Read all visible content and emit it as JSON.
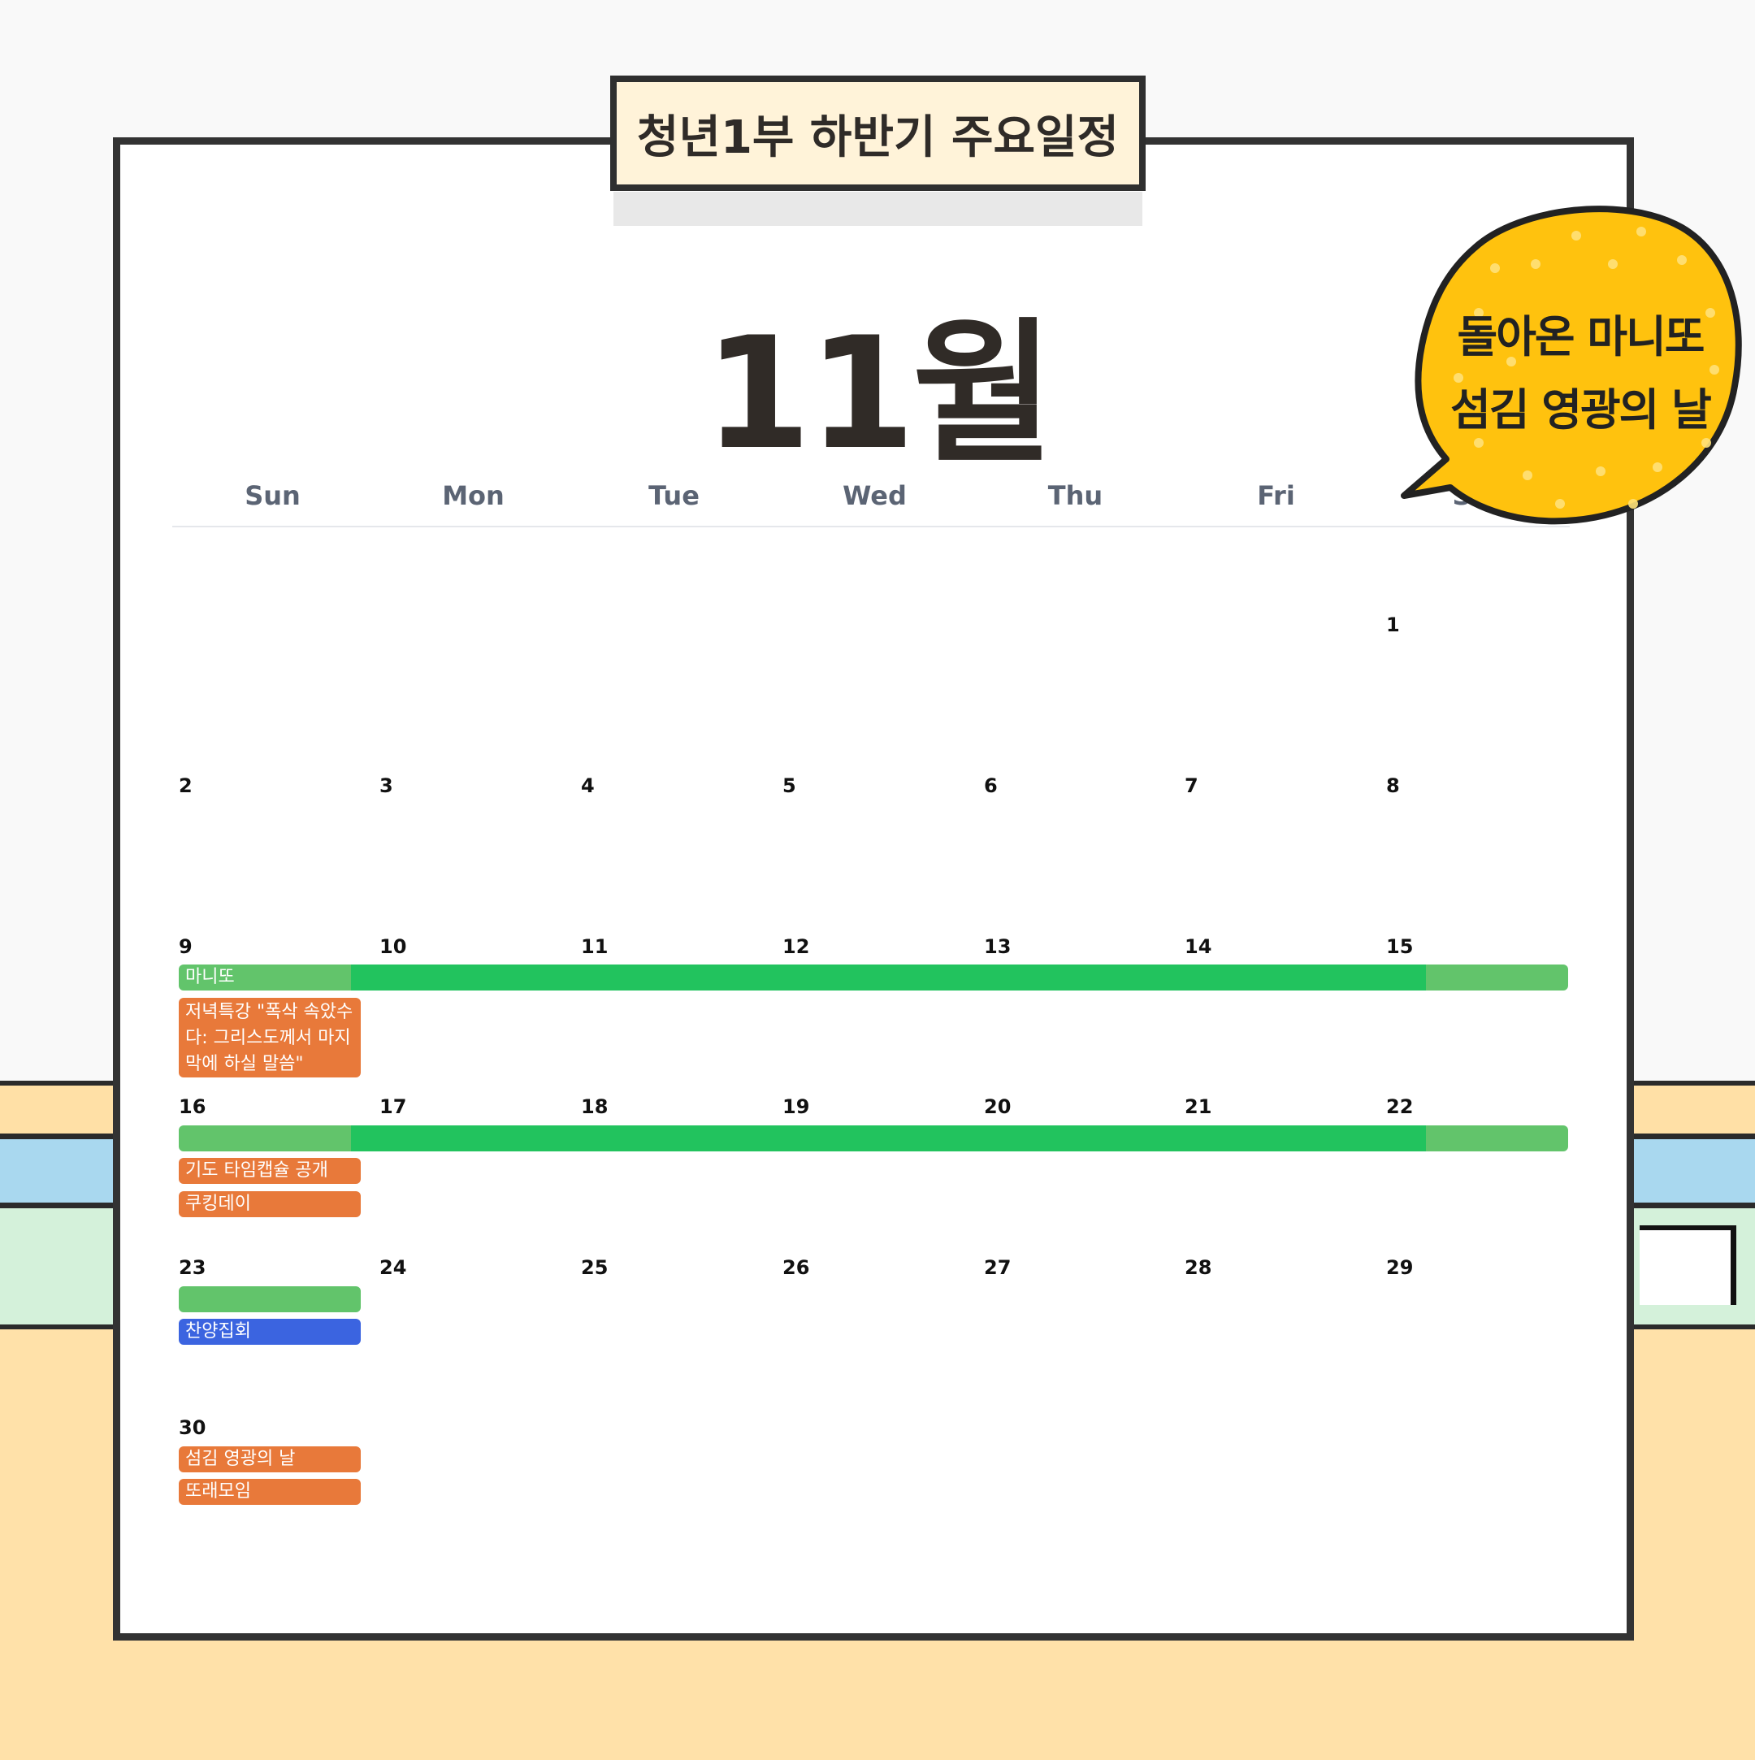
{
  "header": {
    "title": "청년1부 하반기 주요일정",
    "month": "11월"
  },
  "weekdays": [
    "Sun",
    "Mon",
    "Tue",
    "Wed",
    "Thu",
    "Fri",
    "Sat"
  ],
  "days": {
    "d1": "1",
    "d2": "2",
    "d3": "3",
    "d4": "4",
    "d5": "5",
    "d6": "6",
    "d7": "7",
    "d8": "8",
    "d9": "9",
    "d10": "10",
    "d11": "11",
    "d12": "12",
    "d13": "13",
    "d14": "14",
    "d15": "15",
    "d16": "16",
    "d17": "17",
    "d18": "18",
    "d19": "19",
    "d20": "20",
    "d21": "21",
    "d22": "22",
    "d23": "23",
    "d24": "24",
    "d25": "25",
    "d26": "26",
    "d27": "27",
    "d28": "28",
    "d29": "29",
    "d30": "30"
  },
  "events": {
    "manito": "마니또",
    "lecture": "저녁특강 \"폭삭 속았수다: 그리스도께서 마지막에 하실 말씀\"",
    "prayer_capsule": "기도 타임캡슐 공개",
    "cooking_day": "쿠킹데이",
    "praise_meeting": "찬양집회",
    "serving_day": "섬김 영광의 날",
    "ttorae_meeting": "또래모임"
  },
  "bubble": {
    "line1": "돌아온 마니또",
    "line2": "섬김 영광의 날"
  },
  "colors": {
    "event_orange": "#e8793a",
    "event_blue": "#3b64e0",
    "event_green_light": "#62c46b",
    "event_green_dark": "#22c35e",
    "bubble_yellow": "#ffc20e",
    "title_tab_bg": "#fff3d9"
  }
}
